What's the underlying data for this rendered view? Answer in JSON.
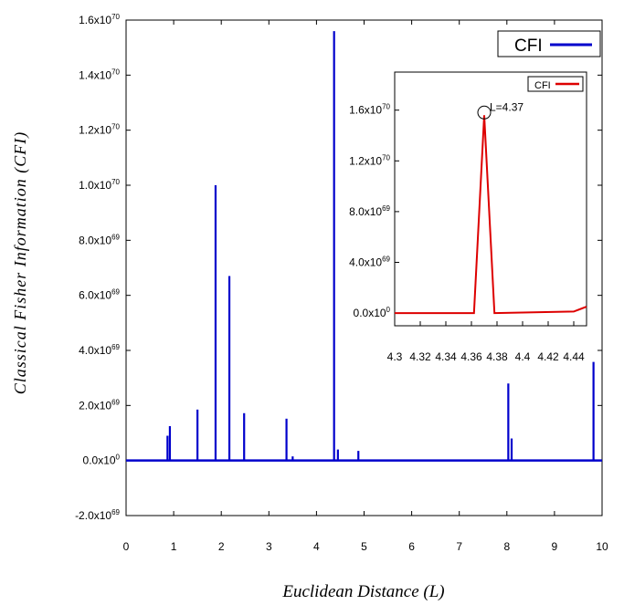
{
  "colors": {
    "main_series": "#0000cc",
    "inset_series": "#dd0000",
    "frame": "#000000"
  },
  "chart_data": [
    {
      "type": "line",
      "title": "",
      "xlabel": "Euclidean Distance (L)",
      "ylabel": "Classical Fisher Information (CFI)",
      "xlim": [
        0,
        10
      ],
      "ylim": [
        -2e+69,
        1.6e+70
      ],
      "x_tick_labels": [
        "0",
        "1",
        "2",
        "3",
        "4",
        "5",
        "6",
        "7",
        "8",
        "9",
        "10"
      ],
      "y_tick_labels": [
        {
          "mant": "-2.0x10",
          "exp": "69"
        },
        {
          "mant": "0.0x10",
          "exp": "0"
        },
        {
          "mant": "2.0x10",
          "exp": "69"
        },
        {
          "mant": "4.0x10",
          "exp": "69"
        },
        {
          "mant": "6.0x10",
          "exp": "69"
        },
        {
          "mant": "8.0x10",
          "exp": "69"
        },
        {
          "mant": "1.0x10",
          "exp": "70"
        },
        {
          "mant": "1.2x10",
          "exp": "70"
        },
        {
          "mant": "1.4x10",
          "exp": "70"
        },
        {
          "mant": "1.6x10",
          "exp": "70"
        }
      ],
      "legend": "top-right",
      "grid": false,
      "series": [
        {
          "name": "CFI",
          "spikes": [
            {
              "x": 0.87,
              "y": 9e+68
            },
            {
              "x": 0.92,
              "y": 1.25e+69
            },
            {
              "x": 1.5,
              "y": 1.85e+69
            },
            {
              "x": 1.88,
              "y": 1e+70
            },
            {
              "x": 2.17,
              "y": 6.7e+69
            },
            {
              "x": 2.48,
              "y": 1.72e+69
            },
            {
              "x": 3.37,
              "y": 1.52e+69
            },
            {
              "x": 3.5,
              "y": 1.5e+68
            },
            {
              "x": 4.37,
              "y": 1.56e+70
            },
            {
              "x": 4.45,
              "y": 4e+68
            },
            {
              "x": 4.88,
              "y": 3.5e+68
            },
            {
              "x": 8.03,
              "y": 2.8e+69
            },
            {
              "x": 8.1,
              "y": 8e+68
            },
            {
              "x": 9.82,
              "y": 3.58e+69
            }
          ]
        }
      ]
    },
    {
      "type": "line",
      "title": "",
      "xlim": [
        4.3,
        4.45
      ],
      "ylim": [
        -1e+69,
        1.9e+70
      ],
      "x_tick_labels": [
        "4.3",
        "4.32",
        "4.34",
        "4.36",
        "4.38",
        "4.4",
        "4.42",
        "4.44"
      ],
      "y_tick_labels": [
        {
          "mant": "0.0x10",
          "exp": "0"
        },
        {
          "mant": "4.0x10",
          "exp": "69"
        },
        {
          "mant": "8.0x10",
          "exp": "69"
        },
        {
          "mant": "1.2x10",
          "exp": "70"
        },
        {
          "mant": "1.6x10",
          "exp": "70"
        }
      ],
      "legend": "top-right",
      "annotation": "L=4.37",
      "series": [
        {
          "name": "CFI",
          "x": [
            4.3,
            4.362,
            4.37,
            4.378,
            4.44,
            4.45
          ],
          "y": [
            0,
            0,
            1.56e+70,
            0,
            1.2e+68,
            5e+68
          ]
        }
      ]
    }
  ]
}
